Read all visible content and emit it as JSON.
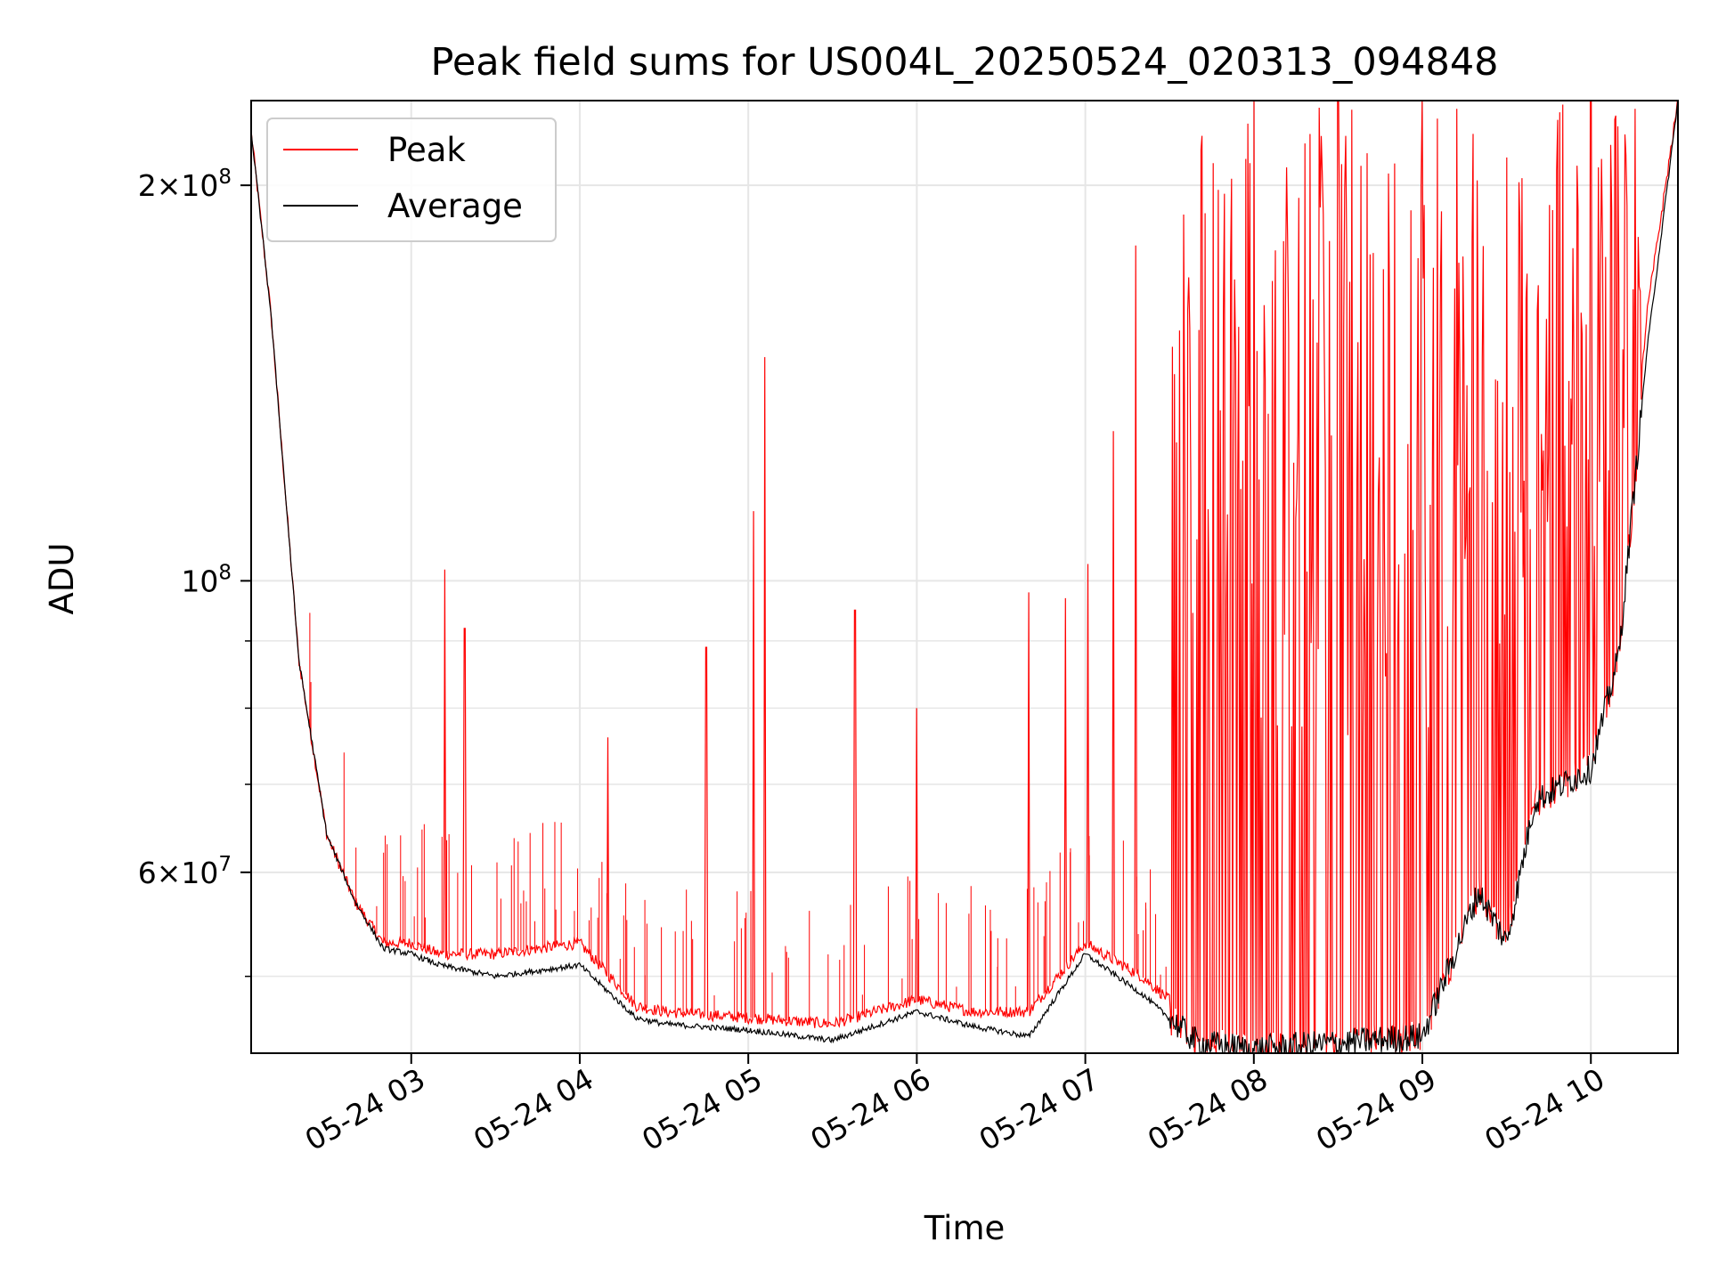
{
  "chart_data": {
    "type": "line",
    "title": "Peak field sums for US004L_20250524_020313_094848",
    "xlabel": "Time",
    "ylabel": "ADU",
    "y_scale": "log",
    "ylim": [
      43700000,
      232000000
    ],
    "x_range": [
      "05-24 02:03",
      "05-24 10:31"
    ],
    "grid": true,
    "legend_position": "upper-left",
    "x_tick_labels": [
      "05-24 03",
      "05-24 04",
      "05-24 05",
      "05-24 06",
      "05-24 07",
      "05-24 08",
      "05-24 09",
      "05-24 10"
    ],
    "x_tick_times": [
      "2025-05-24 03:00",
      "2025-05-24 04:00",
      "2025-05-24 05:00",
      "2025-05-24 06:00",
      "2025-05-24 07:00",
      "2025-05-24 08:00",
      "2025-05-24 09:00",
      "2025-05-24 10:00"
    ],
    "y_tick_labels": [
      {
        "value": 200000000,
        "mantissa": "2",
        "exponent": "8"
      },
      {
        "value": 100000000,
        "mantissa": "",
        "exponent": "8"
      },
      {
        "value": 60000000,
        "mantissa": "6",
        "exponent": "7"
      }
    ],
    "y_minor_ticks": [
      50000000,
      70000000,
      80000000,
      90000000
    ],
    "series": [
      {
        "name": "Peak",
        "color": "#ff0000",
        "x": [
          "02:03",
          "02:10",
          "02:20",
          "02:30",
          "02:40",
          "02:50",
          "03:00",
          "03:10",
          "03:30",
          "04:00",
          "04:20",
          "04:30",
          "05:00",
          "05:30",
          "06:00",
          "06:20",
          "06:40",
          "07:00",
          "07:20",
          "07:40",
          "08:00",
          "08:30",
          "09:00",
          "09:20",
          "09:30",
          "09:40",
          "10:00",
          "10:10",
          "10:20",
          "10:31"
        ],
        "values": [
          220000000,
          160000000,
          87000000,
          64000000,
          57000000,
          53000000,
          53000000,
          52000000,
          52000000,
          53000000,
          47500000,
          47000000,
          46500000,
          46000000,
          48000000,
          47000000,
          47000000,
          53000000,
          50000000,
          46000000,
          46000000,
          46000000,
          47000000,
          60000000,
          55000000,
          70000000,
          74000000,
          90000000,
          160000000,
          232000000
        ],
        "spikes": [
          {
            "x": "03:12",
            "y": 102000000
          },
          {
            "x": "03:19",
            "y": 92000000
          },
          {
            "x": "04:10",
            "y": 76000000
          },
          {
            "x": "04:45",
            "y": 89000000
          },
          {
            "x": "05:02",
            "y": 113000000
          },
          {
            "x": "05:06",
            "y": 148000000
          },
          {
            "x": "05:38",
            "y": 95000000
          },
          {
            "x": "06:00",
            "y": 80000000
          },
          {
            "x": "06:40",
            "y": 98000000
          },
          {
            "x": "06:53",
            "y": 97000000
          },
          {
            "x": "07:01",
            "y": 103000000
          },
          {
            "x": "07:10",
            "y": 130000000
          },
          {
            "x": "07:18",
            "y": 180000000
          },
          {
            "x": "07:35",
            "y": 190000000
          },
          {
            "x": "08:00",
            "y": 232000000
          },
          {
            "x": "08:30",
            "y": 232000000
          },
          {
            "x": "09:00",
            "y": 232000000
          },
          {
            "x": "09:30",
            "y": 210000000
          },
          {
            "x": "10:00",
            "y": 232000000
          }
        ],
        "dense_band": {
          "from": "07:30",
          "to": "10:18",
          "top": 232000000
        }
      },
      {
        "name": "Average",
        "color": "#000000",
        "x": [
          "02:03",
          "02:10",
          "02:20",
          "02:30",
          "02:40",
          "02:50",
          "03:00",
          "03:10",
          "03:30",
          "04:00",
          "04:20",
          "04:30",
          "05:00",
          "05:30",
          "06:00",
          "06:20",
          "06:40",
          "07:00",
          "07:20",
          "07:40",
          "08:00",
          "08:30",
          "09:00",
          "09:20",
          "09:30",
          "09:40",
          "10:00",
          "10:10",
          "10:20",
          "10:31"
        ],
        "values": [
          220000000,
          160000000,
          87000000,
          64000000,
          57000000,
          52500000,
          52000000,
          51000000,
          50000000,
          51000000,
          46500000,
          46000000,
          45500000,
          44700000,
          47000000,
          45800000,
          45000000,
          52000000,
          48500000,
          44500000,
          44000000,
          44500000,
          45000000,
          58000000,
          53000000,
          68000000,
          72000000,
          88000000,
          150000000,
          232000000
        ]
      }
    ]
  }
}
